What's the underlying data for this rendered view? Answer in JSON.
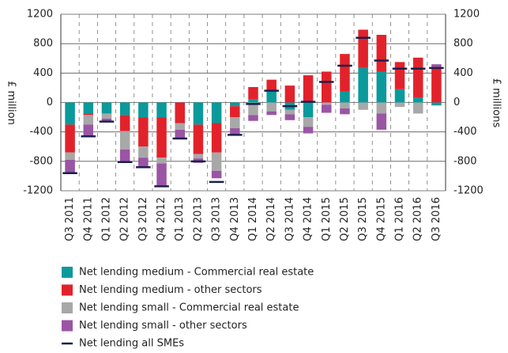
{
  "chart_data": {
    "type": "bar",
    "categories": [
      "Q3 2011",
      "Q4 2011",
      "Q1 2012",
      "Q2 2012",
      "Q3 2012",
      "Q4 2012",
      "Q1 2013",
      "Q2 2013",
      "Q3 2013",
      "Q4 2013",
      "Q1 2014",
      "Q2 2014",
      "Q3 2014",
      "Q4 2014",
      "Q1 2015",
      "Q2 2015",
      "Q3 2015",
      "Q4 2015",
      "Q1 2016",
      "Q2 2016",
      "Q3 2016"
    ],
    "series": [
      {
        "name": "Net lending medium - Commercial real estate",
        "color": "#0a9a9c",
        "stacked": true,
        "values": [
          -300,
          -150,
          -150,
          -170,
          -200,
          -200,
          0,
          -300,
          -280,
          -50,
          40,
          150,
          -100,
          -200,
          0,
          150,
          470,
          420,
          180,
          70,
          -40
        ]
      },
      {
        "name": "Net lending medium - other sectors",
        "color": "#e2222b",
        "stacked": true,
        "values": [
          -380,
          -20,
          0,
          -220,
          -400,
          -550,
          -280,
          -400,
          -400,
          -150,
          170,
          160,
          230,
          370,
          420,
          510,
          520,
          500,
          370,
          540,
          480
        ]
      },
      {
        "name": "Net lending small - Commercial real estate",
        "color": "#a8a8a8",
        "stacked": true,
        "values": [
          -100,
          -130,
          -70,
          -250,
          -150,
          -80,
          -90,
          -60,
          -250,
          -150,
          -170,
          -120,
          -60,
          -130,
          -30,
          -80,
          -100,
          -150,
          -60,
          -150,
          0
        ]
      },
      {
        "name": "Net lending small - other sectors",
        "color": "#9a55a4",
        "stacked": true,
        "values": [
          -170,
          -150,
          -30,
          -170,
          -130,
          -320,
          -130,
          -60,
          -100,
          -100,
          -80,
          -50,
          -80,
          -90,
          -110,
          -80,
          0,
          -220,
          0,
          0,
          40
        ]
      },
      {
        "name": "Net lending all SMEs",
        "color": "#1b1f4e",
        "stacked": false,
        "values": [
          -960,
          -460,
          -260,
          -810,
          -880,
          -1140,
          -490,
          -800,
          -1080,
          -440,
          -20,
          160,
          -50,
          10,
          280,
          500,
          880,
          570,
          460,
          460,
          470
        ]
      }
    ],
    "ylabel": "£ million",
    "y2label": "£ millions",
    "ylim": [
      -1200,
      1200
    ],
    "yticks": [
      -1200,
      -800,
      -400,
      0,
      400,
      800,
      1200
    ],
    "y2lim": [
      -1200,
      1200
    ],
    "y2ticks": [
      -1200,
      -800,
      -400,
      0,
      400,
      800,
      1200
    ],
    "grid": true,
    "legend": "bottom"
  }
}
